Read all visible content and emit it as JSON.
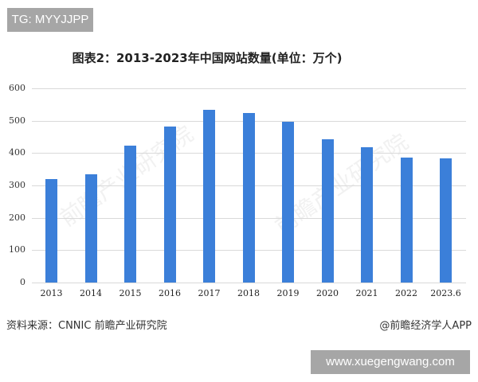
{
  "badges": {
    "top_left": "TG: MYYJJPP",
    "bottom_right": "www.xuegengwang.com"
  },
  "footer": {
    "source": "资料来源：CNNIC 前瞻产业研究院",
    "credit": "@前瞻经济学人APP"
  },
  "watermark": "前瞻产业研究院",
  "colors": {
    "bar": "#3b7fd9",
    "grid": "#d9d9d9",
    "badge": "#a6a6a6"
  },
  "chart_data": {
    "type": "bar",
    "title": "图表2：2013-2023年中国网站数量(单位：万个)",
    "xlabel": "",
    "ylabel": "",
    "unit": "万个",
    "categories": [
      "2013",
      "2014",
      "2015",
      "2016",
      "2017",
      "2018",
      "2019",
      "2020",
      "2021",
      "2022",
      "2023.6"
    ],
    "values": [
      320,
      335,
      423,
      482,
      533,
      523,
      497,
      443,
      418,
      387,
      383
    ],
    "yticks": [
      0,
      100,
      200,
      300,
      400,
      500,
      600
    ],
    "ylim": [
      0,
      600
    ],
    "grid": true,
    "legend": null
  }
}
